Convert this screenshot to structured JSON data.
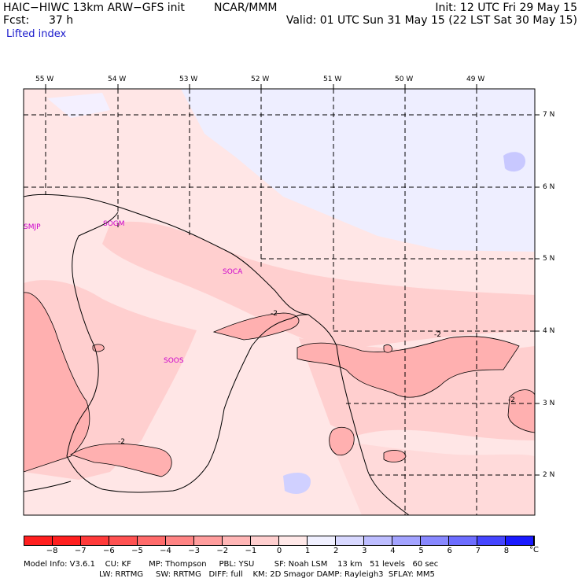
{
  "header": {
    "line1_left": "HAIC−HIWC 13km ARW−GFS init",
    "line1_mid": "NCAR/MMM",
    "line1_right": "Init: 12 UTC Fri 29 May 15",
    "line2_left": "Fcst:",
    "line2_fcst": "37 h",
    "line2_right": "Valid: 01 UTC Sun 31 May 15 (22 LST Sat 30 May 15)",
    "field": "Lifted index"
  },
  "axes": {
    "longitudes": [
      "55 W",
      "54 W",
      "53 W",
      "52 W",
      "51 W",
      "50 W",
      "49 W"
    ],
    "latitudes": [
      "7 N",
      "6 N",
      "5 N",
      "4 N",
      "3 N",
      "2 N"
    ]
  },
  "stations": [
    "SMJP",
    "SOGM",
    "SOCA",
    "SOOS"
  ],
  "contour_labels": [
    "-2",
    "-2",
    "-2",
    "-2"
  ],
  "colorbar": {
    "ticks": [
      "−8",
      "−7",
      "−6",
      "−5",
      "−4",
      "−3",
      "−2",
      "−1",
      "0",
      "1",
      "2",
      "3",
      "4",
      "5",
      "6",
      "7",
      "8"
    ],
    "unit": "°C",
    "colors": [
      "#ff1f1f",
      "#ff3a3a",
      "#ff5252",
      "#ff6b6b",
      "#ff8484",
      "#ff9d9d",
      "#ffb6b6",
      "#ffcfcf",
      "#ffe8e8",
      "#f0f0ff",
      "#d8d8ff",
      "#bdbdff",
      "#a3a3ff",
      "#8888ff",
      "#6d6dff",
      "#4545ff",
      "#1a1aff"
    ]
  },
  "model_info": {
    "line1": "Model Info: V3.6.1    CU: KF       MP: Thompson     PBL: YSU        SF: Noah LSM    13 km   51 levels   60 sec",
    "line2": "LW: RRTMG     SW: RRTMG   DIFF: full    KM: 2D Smagor DAMP: Rayleigh3  SFLAY: MM5"
  }
}
